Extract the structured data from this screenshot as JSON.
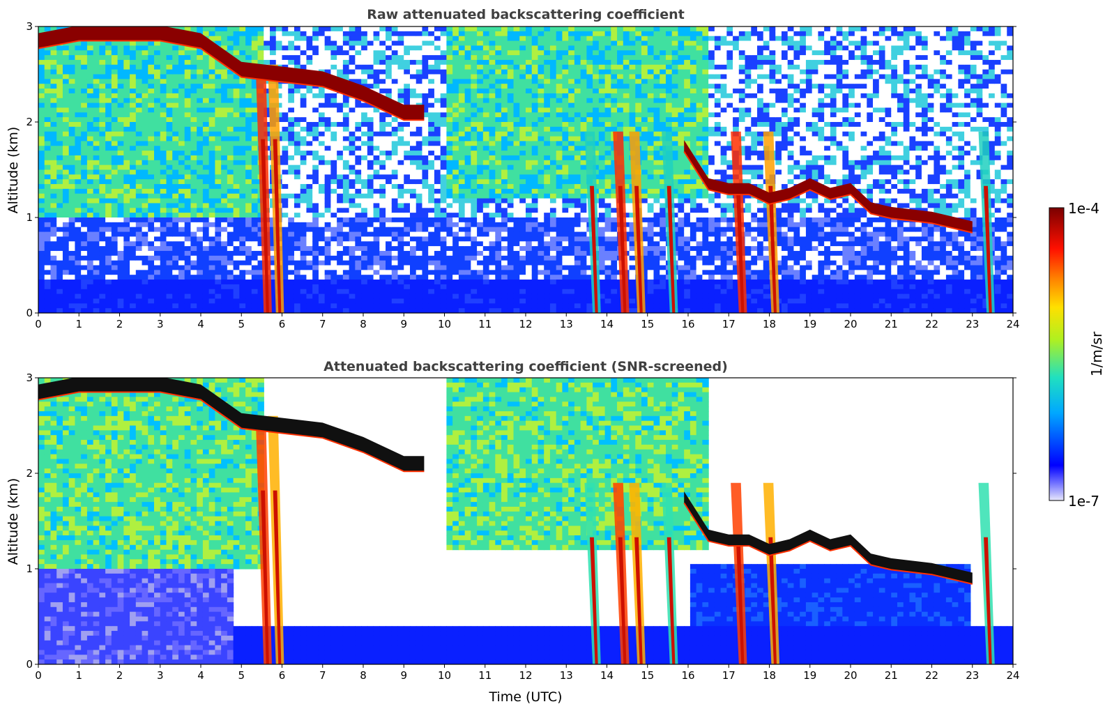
{
  "chart_data": [
    {
      "type": "heatmap",
      "title": "Raw attenuated backscattering coefficient",
      "xlabel": "",
      "ylabel": "Altitude (km)",
      "xlim": [
        0,
        24
      ],
      "ylim": [
        0,
        3
      ],
      "x_ticks": [
        "0",
        "1",
        "2",
        "3",
        "4",
        "5",
        "6",
        "7",
        "8",
        "9",
        "10",
        "11",
        "12",
        "13",
        "14",
        "15",
        "16",
        "17",
        "18",
        "19",
        "20",
        "21",
        "22",
        "23",
        "24"
      ],
      "y_ticks": [
        "0",
        "1",
        "2",
        "3"
      ],
      "screened": false,
      "cloud_top_layer": [
        [
          0,
          2.85
        ],
        [
          1,
          2.93
        ],
        [
          2,
          2.93
        ],
        [
          3,
          2.93
        ],
        [
          4,
          2.85
        ],
        [
          5,
          2.55
        ],
        [
          6,
          2.5
        ],
        [
          7,
          2.45
        ],
        [
          8,
          2.3
        ],
        [
          9,
          2.1
        ],
        [
          9.5,
          2.1
        ]
      ],
      "cloud_base_layer": [
        [
          15.9,
          1.75
        ],
        [
          16.5,
          1.35
        ],
        [
          17,
          1.3
        ],
        [
          17.5,
          1.3
        ],
        [
          18,
          1.2
        ],
        [
          18.5,
          1.25
        ],
        [
          19,
          1.35
        ],
        [
          19.5,
          1.25
        ],
        [
          20,
          1.3
        ],
        [
          20.5,
          1.1
        ],
        [
          21,
          1.05
        ],
        [
          22,
          1.0
        ],
        [
          23,
          0.9
        ]
      ],
      "fallstreaks": [
        [
          5.7,
          0.0
        ],
        [
          6.0,
          0.0
        ],
        [
          13.8,
          0.0
        ],
        [
          14.5,
          0.0
        ],
        [
          14.9,
          0.0
        ],
        [
          15.7,
          0.0
        ],
        [
          17.4,
          0.0
        ],
        [
          18.2,
          0.0
        ],
        [
          23.5,
          0.0
        ]
      ]
    },
    {
      "type": "heatmap",
      "title": "Attenuated backscattering coefficient (SNR-screened)",
      "xlabel": "Time (UTC)",
      "ylabel": "Altitude (km)",
      "xlim": [
        0,
        24
      ],
      "ylim": [
        0,
        3
      ],
      "x_ticks": [
        "0",
        "1",
        "2",
        "3",
        "4",
        "5",
        "6",
        "7",
        "8",
        "9",
        "10",
        "11",
        "12",
        "13",
        "14",
        "15",
        "16",
        "17",
        "18",
        "19",
        "20",
        "21",
        "22",
        "23",
        "24"
      ],
      "y_ticks": [
        "0",
        "1",
        "2",
        "3"
      ],
      "screened": true,
      "cloud_top_layer": [
        [
          0,
          2.85
        ],
        [
          1,
          2.93
        ],
        [
          2,
          2.93
        ],
        [
          3,
          2.93
        ],
        [
          4,
          2.85
        ],
        [
          5,
          2.55
        ],
        [
          6,
          2.5
        ],
        [
          7,
          2.45
        ],
        [
          8,
          2.3
        ],
        [
          9,
          2.1
        ],
        [
          9.5,
          2.1
        ]
      ],
      "cloud_base_layer": [
        [
          15.9,
          1.75
        ],
        [
          16.5,
          1.35
        ],
        [
          17,
          1.3
        ],
        [
          17.5,
          1.3
        ],
        [
          18,
          1.2
        ],
        [
          18.5,
          1.25
        ],
        [
          19,
          1.35
        ],
        [
          19.5,
          1.25
        ],
        [
          20,
          1.3
        ],
        [
          20.5,
          1.1
        ],
        [
          21,
          1.05
        ],
        [
          22,
          1.0
        ],
        [
          23,
          0.9
        ]
      ],
      "fallstreaks": [
        [
          5.7,
          0.0
        ],
        [
          6.0,
          0.0
        ],
        [
          13.8,
          0.0
        ],
        [
          14.5,
          0.0
        ],
        [
          14.9,
          0.0
        ],
        [
          15.7,
          0.0
        ],
        [
          17.4,
          0.0
        ],
        [
          18.2,
          0.0
        ],
        [
          23.5,
          0.0
        ]
      ]
    }
  ],
  "colorbar": {
    "min_label": "1e-7",
    "max_label": "1e-4",
    "unit_label": "1/m/sr",
    "scale": "log",
    "colors": [
      "#e6e6fa",
      "#0000ff",
      "#00bfff",
      "#40e0a0",
      "#c8f000",
      "#ffd000",
      "#ff6000",
      "#cc0000",
      "#800000"
    ]
  }
}
